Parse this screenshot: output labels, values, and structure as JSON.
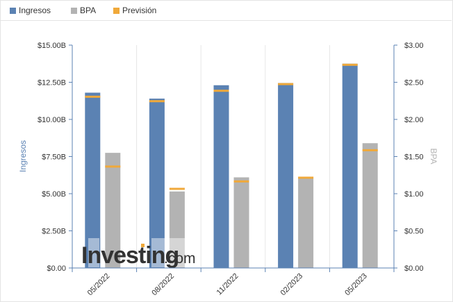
{
  "legend": {
    "items": [
      {
        "label": "Ingresos",
        "color": "#5b82b3"
      },
      {
        "label": "BPA",
        "color": "#b3b3b3"
      },
      {
        "label": "Previsión",
        "color": "#f0a93a"
      }
    ]
  },
  "watermark": {
    "brand": "Investing",
    "suffix": ".com"
  },
  "chart_data": {
    "type": "bar",
    "categories": [
      "05/2022",
      "08/2022",
      "11/2022",
      "02/2023",
      "05/2023"
    ],
    "ylabel": "Ingresos",
    "y2label": "BPA",
    "ylim": [
      0,
      15
    ],
    "y2lim": [
      0,
      3
    ],
    "yticks": [
      "$0.00",
      "$2.50B",
      "$5.00B",
      "$7.50B",
      "$10.00B",
      "$12.50B",
      "$15.00B"
    ],
    "y2ticks": [
      "$0.00",
      "$0.50",
      "$1.00",
      "$1.50",
      "$2.00",
      "$2.50",
      "$3.00"
    ],
    "series": [
      {
        "name": "Ingresos",
        "axis": "left",
        "unit": "B USD",
        "values": [
          11.8,
          11.4,
          12.3,
          12.45,
          13.75
        ],
        "forecast": [
          11.55,
          11.25,
          11.95,
          12.4,
          13.7
        ],
        "color": "#5b82b3"
      },
      {
        "name": "BPA",
        "axis": "right",
        "unit": "USD",
        "values": [
          1.55,
          1.03,
          1.22,
          1.22,
          1.68
        ],
        "forecast": [
          1.37,
          1.07,
          1.17,
          1.22,
          1.59
        ],
        "color": "#b3b3b3"
      }
    ],
    "forecast_name": "Previsión",
    "forecast_color": "#f0a93a",
    "grid": true,
    "legend_position": "top-left"
  }
}
